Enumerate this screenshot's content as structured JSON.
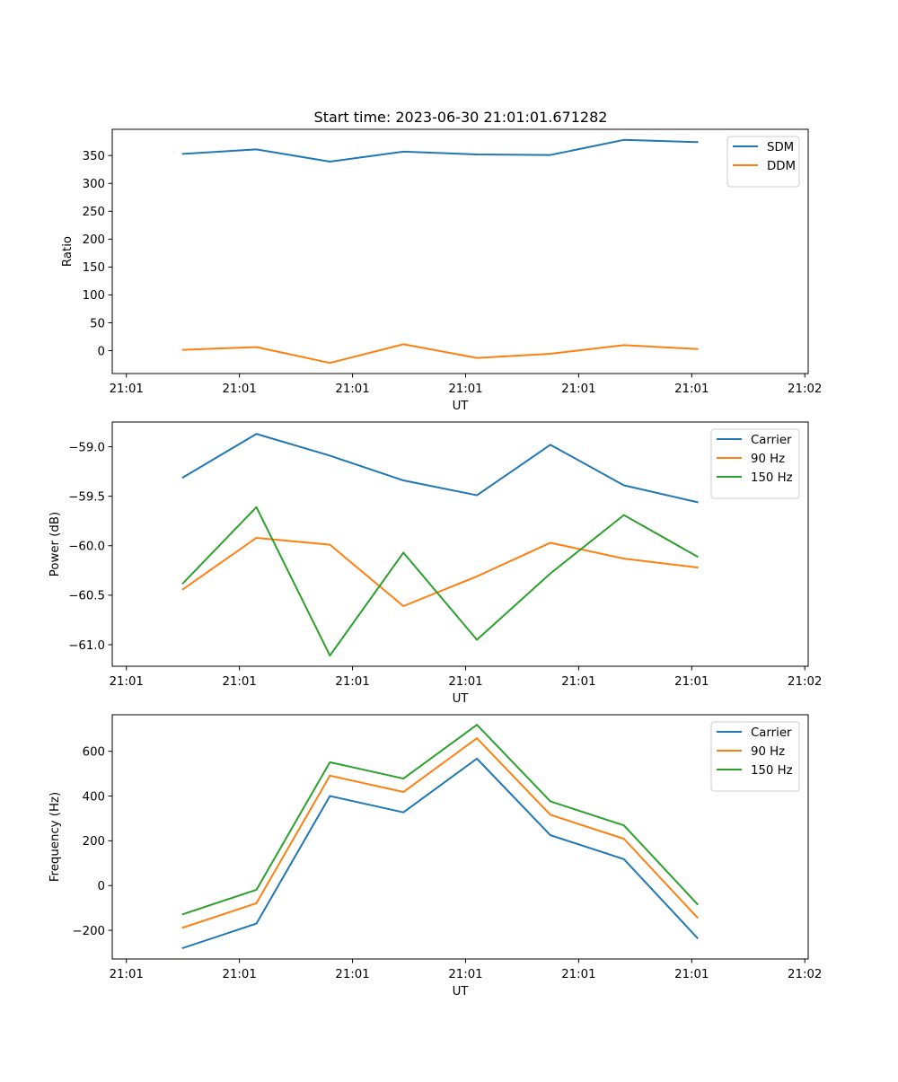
{
  "figure_title": "Start time: 2023-06-30 21:01:01.671282",
  "colors": {
    "blue": "#1f77b4",
    "orange": "#ff7f0e",
    "green": "#2ca02c"
  },
  "chart_data": [
    {
      "type": "line",
      "title": "Start time: 2023-06-30 21:01:01.671282",
      "xlabel": "UT",
      "ylabel": "Ratio",
      "x_tick_labels": [
        "21:01",
        "21:01",
        "21:01",
        "21:01",
        "21:01",
        "21:01",
        "21:02"
      ],
      "y_ticks": [
        0,
        50,
        100,
        150,
        200,
        250,
        300,
        350
      ],
      "ylim": [
        -41,
        397
      ],
      "x_ticks": [
        0,
        1,
        2,
        3,
        4,
        5,
        6
      ],
      "xlim": [
        -0.125,
        6.03
      ],
      "x": [
        0.5,
        1.15,
        1.8,
        2.45,
        3.1,
        3.75,
        4.4,
        5.05
      ],
      "legend_position": "upper right",
      "series": [
        {
          "name": "SDM",
          "color": "#1f77b4",
          "values": [
            353,
            361,
            339,
            357,
            352,
            351,
            378,
            374
          ]
        },
        {
          "name": "DDM",
          "color": "#ff7f0e",
          "values": [
            1.5,
            6.5,
            -22,
            11.5,
            -13,
            -5.5,
            10,
            3
          ]
        }
      ]
    },
    {
      "type": "line",
      "xlabel": "UT",
      "ylabel": "Power (dB)",
      "x_tick_labels": [
        "21:01",
        "21:01",
        "21:01",
        "21:01",
        "21:01",
        "21:01",
        "21:02"
      ],
      "y_ticks": [
        -61.0,
        -60.5,
        -60.0,
        -59.5,
        -59.0
      ],
      "y_tick_labels": [
        "−61.0",
        "−60.5",
        "−60.0",
        "−59.5",
        "−59.0"
      ],
      "ylim": [
        -61.218,
        -58.75
      ],
      "x_ticks": [
        0,
        1,
        2,
        3,
        4,
        5,
        6
      ],
      "xlim": [
        -0.125,
        6.03
      ],
      "x": [
        0.5,
        1.15,
        1.8,
        2.45,
        3.1,
        3.75,
        4.4,
        5.05
      ],
      "legend_position": "upper right",
      "series": [
        {
          "name": "Carrier",
          "color": "#1f77b4",
          "values": [
            -59.31,
            -58.87,
            -59.09,
            -59.34,
            -59.49,
            -58.98,
            -59.39,
            -59.56
          ]
        },
        {
          "name": "90 Hz",
          "color": "#ff7f0e",
          "values": [
            -60.44,
            -59.92,
            -59.99,
            -60.61,
            -60.31,
            -59.97,
            -60.13,
            -60.22
          ]
        },
        {
          "name": "150 Hz",
          "color": "#2ca02c",
          "values": [
            -60.38,
            -59.61,
            -61.11,
            -60.07,
            -60.95,
            -60.28,
            -59.69,
            -60.11
          ]
        }
      ]
    },
    {
      "type": "line",
      "xlabel": "UT",
      "ylabel": "Frequency (Hz)",
      "x_tick_labels": [
        "21:01",
        "21:01",
        "21:01",
        "21:01",
        "21:01",
        "21:01",
        "21:02"
      ],
      "y_ticks": [
        -200,
        0,
        200,
        400,
        600
      ],
      "y_tick_labels": [
        "−200",
        "0",
        "200",
        "400",
        "600"
      ],
      "ylim": [
        -328,
        763
      ],
      "x_ticks": [
        0,
        1,
        2,
        3,
        4,
        5,
        6
      ],
      "xlim": [
        -0.125,
        6.03
      ],
      "x": [
        0.5,
        1.15,
        1.8,
        2.45,
        3.1,
        3.75,
        4.4,
        5.05
      ],
      "legend_position": "upper right",
      "series": [
        {
          "name": "Carrier",
          "color": "#1f77b4",
          "values": [
            -279,
            -170,
            400,
            327,
            567,
            225,
            118,
            -234
          ]
        },
        {
          "name": "90 Hz",
          "color": "#ff7f0e",
          "values": [
            -188,
            -79,
            491,
            418,
            658,
            316,
            209,
            -143
          ]
        },
        {
          "name": "150 Hz",
          "color": "#2ca02c",
          "values": [
            -128,
            -19,
            551,
            478,
            718,
            376,
            269,
            -83
          ]
        }
      ]
    }
  ]
}
